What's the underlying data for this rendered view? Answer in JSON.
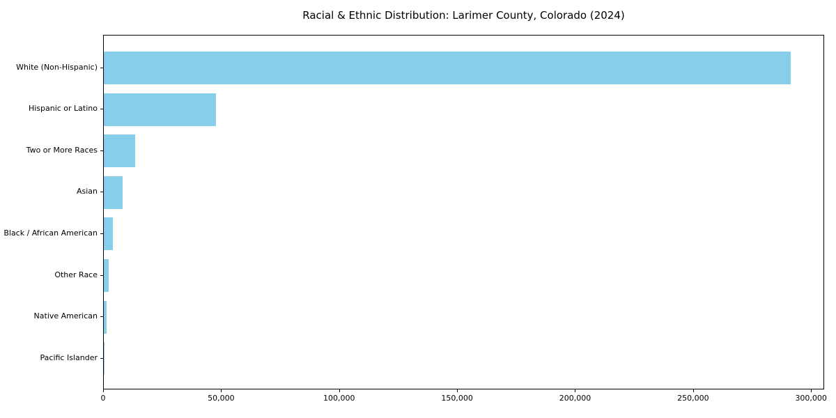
{
  "figure": {
    "background_color": "#ffffff",
    "spine_color": "#000000",
    "text_color": "#000000"
  },
  "chart_data": {
    "type": "bar",
    "orientation": "horizontal",
    "title": "Racial & Ethnic Distribution: Larimer County, Colorado (2024)",
    "xlabel": "",
    "ylabel": "",
    "categories": [
      "White (Non-Hispanic)",
      "Hispanic or Latino",
      "Two or More Races",
      "Asian",
      "Black / African American",
      "Other Race",
      "Native American",
      "Pacific Islander"
    ],
    "values": [
      291000,
      47400,
      13400,
      8000,
      3800,
      2200,
      1200,
      400
    ],
    "bar_color": "#87CEEB",
    "xlim": [
      0,
      305550
    ],
    "xticks": [
      {
        "value": 0,
        "label": "0"
      },
      {
        "value": 50000,
        "label": "50,000"
      },
      {
        "value": 100000,
        "label": "100,000"
      },
      {
        "value": 150000,
        "label": "150,000"
      },
      {
        "value": 200000,
        "label": "200,000"
      },
      {
        "value": 250000,
        "label": "250,000"
      },
      {
        "value": 300000,
        "label": "300,000"
      }
    ],
    "grid": false,
    "legend": "none"
  }
}
